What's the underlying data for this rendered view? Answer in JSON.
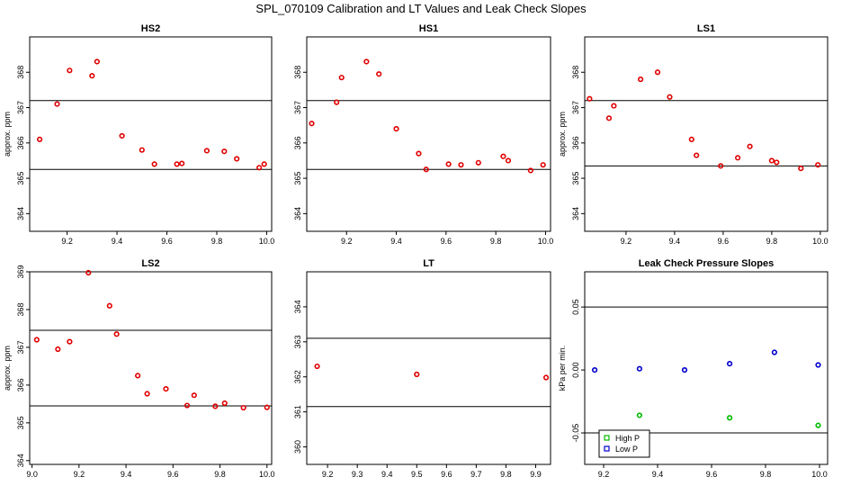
{
  "page_title": "SPL_070109  Calibration and LT Values and Leak Check Slopes",
  "colors": {
    "point_red": "#e00000",
    "point_green": "#00bb00",
    "point_blue": "#0000cc",
    "axis": "#000000"
  },
  "chart_data": [
    {
      "id": "hs2",
      "type": "scatter",
      "title": "HS2",
      "ylabel": "approx. ppm",
      "xlim": [
        9.05,
        10.02
      ],
      "ylim": [
        363.5,
        369.0
      ],
      "xticks": [
        9.2,
        9.4,
        9.6,
        9.8,
        10.0
      ],
      "xticklabels": [
        "9.2",
        "9.4",
        "9.6",
        "9.8",
        "10.0"
      ],
      "yticks": [
        364,
        365,
        366,
        367,
        368
      ],
      "yticklabels": [
        "364",
        "365",
        "366",
        "367",
        "368"
      ],
      "hlines": [
        367.2,
        365.25
      ],
      "series": [
        {
          "color": "#e00000",
          "points": [
            [
              9.09,
              366.1
            ],
            [
              9.16,
              367.1
            ],
            [
              9.21,
              368.05
            ],
            [
              9.3,
              367.9
            ],
            [
              9.32,
              368.3
            ],
            [
              9.42,
              366.2
            ],
            [
              9.5,
              365.8
            ],
            [
              9.55,
              365.4
            ],
            [
              9.64,
              365.4
            ],
            [
              9.66,
              365.42
            ],
            [
              9.76,
              365.78
            ],
            [
              9.83,
              365.76
            ],
            [
              9.88,
              365.55
            ],
            [
              9.97,
              365.3
            ],
            [
              9.99,
              365.4
            ]
          ]
        }
      ]
    },
    {
      "id": "hs1",
      "type": "scatter",
      "title": "HS1",
      "ylabel": "",
      "xlim": [
        9.04,
        10.02
      ],
      "ylim": [
        363.5,
        369.0
      ],
      "xticks": [
        9.2,
        9.4,
        9.6,
        9.8,
        10.0
      ],
      "xticklabels": [
        "9.2",
        "9.4",
        "9.6",
        "9.8",
        "10.0"
      ],
      "yticks": [
        364,
        365,
        366,
        367,
        368
      ],
      "yticklabels": [
        "364",
        "365",
        "366",
        "367",
        "368"
      ],
      "hlines": [
        367.2,
        365.25
      ],
      "series": [
        {
          "color": "#e00000",
          "points": [
            [
              9.06,
              366.55
            ],
            [
              9.16,
              367.15
            ],
            [
              9.18,
              367.85
            ],
            [
              9.28,
              368.3
            ],
            [
              9.33,
              367.95
            ],
            [
              9.4,
              366.4
            ],
            [
              9.49,
              365.7
            ],
            [
              9.52,
              365.25
            ],
            [
              9.61,
              365.4
            ],
            [
              9.66,
              365.38
            ],
            [
              9.73,
              365.44
            ],
            [
              9.83,
              365.62
            ],
            [
              9.85,
              365.5
            ],
            [
              9.94,
              365.22
            ],
            [
              9.99,
              365.38
            ]
          ]
        }
      ]
    },
    {
      "id": "ls1",
      "type": "scatter",
      "title": "LS1",
      "ylabel": "approx. ppm",
      "xlim": [
        9.03,
        10.03
      ],
      "ylim": [
        363.5,
        369.0
      ],
      "xticks": [
        9.2,
        9.4,
        9.6,
        9.8,
        10.0
      ],
      "xticklabels": [
        "9.2",
        "9.4",
        "9.6",
        "9.8",
        "10.0"
      ],
      "yticks": [
        364,
        365,
        366,
        367,
        368
      ],
      "yticklabels": [
        "364",
        "365",
        "366",
        "367",
        "368"
      ],
      "hlines": [
        367.2,
        365.35
      ],
      "series": [
        {
          "color": "#e00000",
          "points": [
            [
              9.05,
              367.25
            ],
            [
              9.13,
              366.7
            ],
            [
              9.15,
              367.05
            ],
            [
              9.26,
              367.8
            ],
            [
              9.33,
              368.0
            ],
            [
              9.38,
              367.3
            ],
            [
              9.47,
              366.1
            ],
            [
              9.49,
              365.65
            ],
            [
              9.59,
              365.35
            ],
            [
              9.66,
              365.58
            ],
            [
              9.71,
              365.9
            ],
            [
              9.8,
              365.5
            ],
            [
              9.82,
              365.45
            ],
            [
              9.92,
              365.28
            ],
            [
              9.99,
              365.38
            ]
          ]
        }
      ]
    },
    {
      "id": "ls2",
      "type": "scatter",
      "title": "LS2",
      "ylabel": "approx. ppm",
      "xlim": [
        8.99,
        10.02
      ],
      "ylim": [
        363.9,
        369.0
      ],
      "xticks": [
        9.0,
        9.2,
        9.4,
        9.6,
        9.8,
        10.0
      ],
      "xticklabels": [
        "9.0",
        "9.2",
        "9.4",
        "9.6",
        "9.8",
        "10.0"
      ],
      "yticks": [
        364,
        365,
        366,
        367,
        368,
        369
      ],
      "yticklabels": [
        "364",
        "365",
        "366",
        "367",
        "368",
        "369"
      ],
      "hlines": [
        367.45,
        365.45
      ],
      "series": [
        {
          "color": "#e00000",
          "points": [
            [
              9.02,
              367.2
            ],
            [
              9.11,
              366.95
            ],
            [
              9.16,
              367.15
            ],
            [
              9.24,
              369.0
            ],
            [
              9.33,
              368.1
            ],
            [
              9.36,
              367.35
            ],
            [
              9.45,
              366.25
            ],
            [
              9.49,
              365.77
            ],
            [
              9.57,
              365.9
            ],
            [
              9.66,
              365.46
            ],
            [
              9.69,
              365.73
            ],
            [
              9.78,
              365.44
            ],
            [
              9.82,
              365.52
            ],
            [
              9.9,
              365.4
            ],
            [
              10.0,
              365.41
            ]
          ]
        }
      ]
    },
    {
      "id": "lt",
      "type": "scatter",
      "title": "LT",
      "ylabel": "",
      "xlim": [
        9.13,
        9.95
      ],
      "ylim": [
        359.5,
        365.0
      ],
      "xticks": [
        9.2,
        9.3,
        9.4,
        9.5,
        9.6,
        9.7,
        9.8,
        9.9
      ],
      "xticklabels": [
        "9.2",
        "9.3",
        "9.4",
        "9.5",
        "9.6",
        "9.7",
        "9.8",
        "9.9"
      ],
      "yticks": [
        360,
        361,
        362,
        363,
        364
      ],
      "yticklabels": [
        "360",
        "361",
        "362",
        "363",
        "364"
      ],
      "hlines": [
        363.1,
        361.15
      ],
      "series": [
        {
          "color": "#e00000",
          "points": [
            [
              9.165,
              362.3
            ],
            [
              9.5,
              362.07
            ],
            [
              9.935,
              361.98
            ]
          ]
        }
      ]
    },
    {
      "id": "leak",
      "type": "scatter",
      "title": "Leak Check Pressure Slopes",
      "ylabel": "kPa per min.",
      "xlim": [
        9.13,
        10.03
      ],
      "ylim": [
        -0.075,
        0.078
      ],
      "xticks": [
        9.2,
        9.4,
        9.6,
        9.8,
        10.0
      ],
      "xticklabels": [
        "9.2",
        "9.4",
        "9.6",
        "9.8",
        "10.0"
      ],
      "yticks": [
        -0.05,
        0.0,
        0.05
      ],
      "yticklabels": [
        "-0.05",
        "0.00",
        "0.05"
      ],
      "hlines": [
        0.05,
        -0.05
      ],
      "legend": {
        "position": "bottom-left"
      },
      "series": [
        {
          "name": "High P",
          "color": "#00bb00",
          "points": [
            [
              9.333,
              -0.036
            ],
            [
              9.667,
              -0.038
            ],
            [
              9.995,
              -0.044
            ]
          ]
        },
        {
          "name": "Low P",
          "color": "#0000cc",
          "points": [
            [
              9.167,
              0.0
            ],
            [
              9.333,
              0.001
            ],
            [
              9.5,
              0.0
            ],
            [
              9.667,
              0.005
            ],
            [
              9.833,
              0.014
            ],
            [
              9.995,
              0.004
            ]
          ]
        }
      ]
    }
  ]
}
